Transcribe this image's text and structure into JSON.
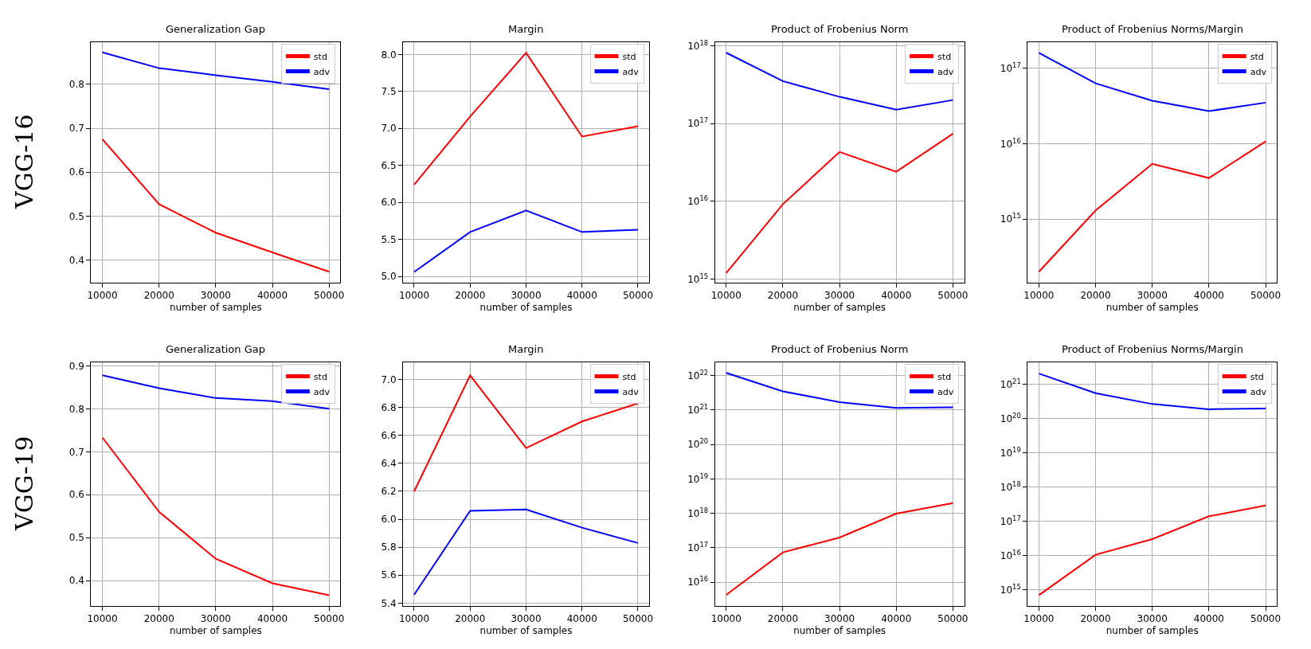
{
  "chart_data": [
    {
      "type": "line",
      "title": "Generalization Gap",
      "xlabel": "number of samples",
      "annotations": [
        "VGG-16"
      ],
      "x": [
        10000,
        20000,
        30000,
        40000,
        50000
      ],
      "xlim": [
        8000,
        52000
      ],
      "xticks": [
        10000,
        20000,
        30000,
        40000,
        50000
      ],
      "ylim": [
        0.349,
        0.897
      ],
      "yticks": [
        0.4,
        0.5,
        0.6,
        0.7,
        0.8
      ],
      "grid": true,
      "legend": "top right",
      "series": [
        {
          "name": "std",
          "color": "#ff0000",
          "values": [
            0.675,
            0.527,
            0.462,
            0.417,
            0.373
          ]
        },
        {
          "name": "adv",
          "color": "#0000ff",
          "values": [
            0.873,
            0.837,
            0.821,
            0.806,
            0.789
          ]
        }
      ]
    },
    {
      "type": "line",
      "title": "Margin",
      "xlabel": "number of samples",
      "x": [
        10000,
        20000,
        30000,
        40000,
        50000
      ],
      "xlim": [
        8000,
        52000
      ],
      "xticks": [
        10000,
        20000,
        30000,
        40000,
        50000
      ],
      "ylim": [
        4.92,
        8.17
      ],
      "yticks": [
        {
          "value": 5,
          "label": "5.0"
        },
        5.5,
        {
          "value": 6,
          "label": "6.0"
        },
        6.5,
        {
          "value": 7,
          "label": "7.0"
        },
        7.5,
        {
          "value": 8,
          "label": "8.0"
        }
      ],
      "grid": true,
      "legend": "top right",
      "series": [
        {
          "name": "std",
          "color": "#ff0000",
          "values": [
            6.24,
            7.16,
            8.02,
            6.89,
            7.03
          ]
        },
        {
          "name": "adv",
          "color": "#0000ff",
          "values": [
            5.06,
            5.6,
            5.89,
            5.6,
            5.63
          ]
        }
      ]
    },
    {
      "type": "line",
      "title": "Product of Frobenius Norm",
      "xlabel": "number of samples",
      "x": [
        10000,
        20000,
        30000,
        40000,
        50000
      ],
      "xlim": [
        8000,
        52000
      ],
      "xticks": [
        10000,
        20000,
        30000,
        40000,
        50000
      ],
      "log": "y",
      "ylim": [
        910000000000000.0,
        1.12e+18
      ],
      "yticks": [
        {
          "value": 1000000000000000.0,
          "label": "10$^{15}$"
        },
        {
          "value": 1e+16,
          "label": "10$^{16}$"
        },
        {
          "value": 1e+17,
          "label": "10$^{17}$"
        },
        {
          "value": 1e+18,
          "label": "10$^{18}$"
        }
      ],
      "grid": true,
      "legend": "top right",
      "series": [
        {
          "name": "std",
          "color": "#ff0000",
          "values": [
            1200000000000000.0,
            9200000000000000.0,
            4.3e+16,
            2.4e+16,
            7.4e+16
          ]
        },
        {
          "name": "adv",
          "color": "#0000ff",
          "values": [
            8.1e+17,
            3.5e+17,
            2.2e+17,
            1.5e+17,
            2e+17
          ]
        }
      ]
    },
    {
      "type": "line",
      "title": "Product of Frobenius Norms/Margin",
      "xlabel": "number of samples",
      "x": [
        10000,
        20000,
        30000,
        40000,
        50000
      ],
      "xlim": [
        8000,
        52000
      ],
      "xticks": [
        10000,
        20000,
        30000,
        40000,
        50000
      ],
      "log": "y",
      "ylim": [
        145000000000000.0,
        2.24e+17
      ],
      "yticks": [
        {
          "value": 1000000000000000.0,
          "label": "10$^{15}$"
        },
        {
          "value": 1e+16,
          "label": "10$^{16}$"
        },
        {
          "value": 1e+17,
          "label": "10$^{17}$"
        }
      ],
      "grid": true,
      "legend": "top right",
      "series": [
        {
          "name": "std",
          "color": "#ff0000",
          "values": [
            200000000000000.0,
            1300000000000000.0,
            5400000000000000.0,
            3500000000000000.0,
            1.07e+16
          ]
        },
        {
          "name": "adv",
          "color": "#0000ff",
          "values": [
            1.6e+17,
            6.3e+16,
            3.7e+16,
            2.7e+16,
            3.5e+16
          ]
        }
      ]
    },
    {
      "type": "line",
      "title": "Generalization Gap",
      "xlabel": "number of samples",
      "annotations": [
        "VGG-19"
      ],
      "x": [
        10000,
        20000,
        30000,
        40000,
        50000
      ],
      "xlim": [
        8000,
        52000
      ],
      "xticks": [
        10000,
        20000,
        30000,
        40000,
        50000
      ],
      "ylim": [
        0.342,
        0.909
      ],
      "yticks": [
        0.4,
        0.5,
        0.6,
        0.7,
        0.8,
        0.9
      ],
      "grid": true,
      "legend": "top right",
      "series": [
        {
          "name": "std",
          "color": "#ff0000",
          "values": [
            0.733,
            0.56,
            0.451,
            0.394,
            0.366
          ]
        },
        {
          "name": "adv",
          "color": "#0000ff",
          "values": [
            0.878,
            0.848,
            0.825,
            0.818,
            0.8
          ]
        }
      ]
    },
    {
      "type": "line",
      "title": "Margin",
      "xlabel": "number of samples",
      "x": [
        10000,
        20000,
        30000,
        40000,
        50000
      ],
      "xlim": [
        8000,
        52000
      ],
      "xticks": [
        10000,
        20000,
        30000,
        40000,
        50000
      ],
      "ylim": [
        5.382,
        7.126
      ],
      "yticks": [
        5.4,
        5.6,
        5.8,
        {
          "value": 6,
          "label": "6.0"
        },
        6.2,
        6.4,
        6.6,
        6.8,
        {
          "value": 7,
          "label": "7.0"
        }
      ],
      "grid": true,
      "legend": "top right",
      "series": [
        {
          "name": "std",
          "color": "#ff0000",
          "values": [
            6.2,
            7.03,
            6.51,
            6.7,
            6.83
          ]
        },
        {
          "name": "adv",
          "color": "#0000ff",
          "values": [
            5.46,
            6.06,
            6.07,
            5.94,
            5.83
          ]
        }
      ]
    },
    {
      "type": "line",
      "title": "Product of Frobenius Norm",
      "xlabel": "number of samples",
      "x": [
        10000,
        20000,
        30000,
        40000,
        50000
      ],
      "xlim": [
        8000,
        52000
      ],
      "xticks": [
        10000,
        20000,
        30000,
        40000,
        50000
      ],
      "log": "y",
      "ylim": [
        2100000000000000.0,
        2.5e+22
      ],
      "yticks": [
        {
          "value": 1e+16,
          "label": "10$^{16}$"
        },
        {
          "value": 1e+17,
          "label": "10$^{17}$"
        },
        {
          "value": 1e+18,
          "label": "10$^{18}$"
        },
        {
          "value": 1e+19,
          "label": "10$^{19}$"
        },
        {
          "value": 1e+20,
          "label": "10$^{20}$"
        },
        {
          "value": 1e+21,
          "label": "10$^{21}$"
        },
        {
          "value": 1e+22,
          "label": "10$^{22}$"
        }
      ],
      "grid": true,
      "legend": "top right",
      "series": [
        {
          "name": "std",
          "color": "#ff0000",
          "values": [
            4300000000000000.0,
            7.4e+16,
            2e+17,
            9.8e+17,
            2e+18
          ]
        },
        {
          "name": "adv",
          "color": "#0000ff",
          "values": [
            1.2e+22,
            3.5e+21,
            1.7e+21,
            1.15e+21,
            1.2e+21
          ]
        }
      ]
    },
    {
      "type": "line",
      "title": "Product of Frobenius Norms/Margin",
      "xlabel": "number of samples",
      "x": [
        10000,
        20000,
        30000,
        40000,
        50000
      ],
      "xlim": [
        8000,
        52000
      ],
      "xticks": [
        10000,
        20000,
        30000,
        40000,
        50000
      ],
      "log": "y",
      "ylim": [
        340000000000000.0,
        4.6e+21
      ],
      "yticks": [
        {
          "value": 1000000000000000.0,
          "label": "10$^{15}$"
        },
        {
          "value": 1e+16,
          "label": "10$^{16}$"
        },
        {
          "value": 1e+17,
          "label": "10$^{17}$"
        },
        {
          "value": 1e+18,
          "label": "10$^{18}$"
        },
        {
          "value": 1e+19,
          "label": "10$^{19}$"
        },
        {
          "value": 1e+20,
          "label": "10$^{20}$"
        },
        {
          "value": 1e+21,
          "label": "10$^{21}$"
        }
      ],
      "grid": true,
      "legend": "top right",
      "series": [
        {
          "name": "std",
          "color": "#ff0000",
          "values": [
            690000000000000.0,
            1.05e+16,
            3e+16,
            1.4e+17,
            2.9e+17
          ]
        },
        {
          "name": "adv",
          "color": "#0000ff",
          "values": [
            2.1e+21,
            5.6e+20,
            2.7e+20,
            1.9e+20,
            2e+20
          ]
        }
      ]
    }
  ]
}
